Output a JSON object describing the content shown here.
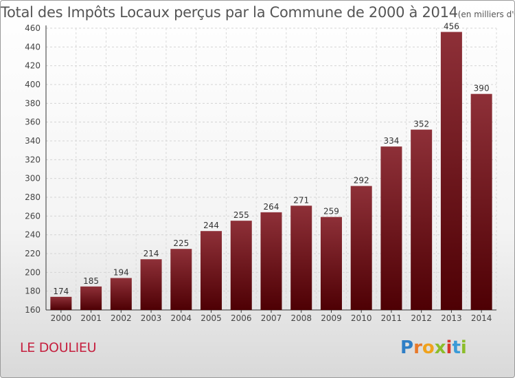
{
  "chart_data": {
    "type": "bar",
    "title": "Total des Impôts Locaux perçus par la Commune de 2000 à 2014",
    "unit_note": "(en milliers d'€)",
    "categories": [
      "2000",
      "2001",
      "2002",
      "2003",
      "2004",
      "2005",
      "2006",
      "2007",
      "2008",
      "2009",
      "2010",
      "2011",
      "2012",
      "2013",
      "2014"
    ],
    "values": [
      174,
      185,
      194,
      214,
      225,
      244,
      255,
      264,
      271,
      259,
      292,
      334,
      352,
      456,
      390
    ],
    "ylim": [
      160,
      460
    ],
    "yticks": [
      160,
      180,
      200,
      220,
      240,
      260,
      280,
      300,
      320,
      340,
      360,
      380,
      400,
      420,
      440,
      460
    ],
    "xlabel": "",
    "ylabel": "",
    "grid": true,
    "bar_color": "#7a1a22"
  },
  "footer": {
    "commune": "LE DOULIEU",
    "logo_letters": [
      "P",
      "r",
      "o",
      "x",
      "i",
      "t",
      "i"
    ]
  },
  "colors": {
    "title": "#555555",
    "commune": "#c51f3e"
  }
}
